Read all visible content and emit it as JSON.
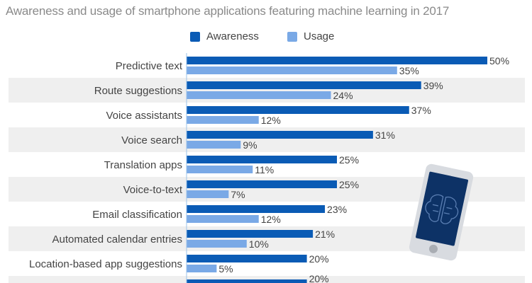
{
  "chart_data": {
    "type": "bar",
    "orientation": "horizontal",
    "subtitle": "Awareness and usage of smartphone applications featuring machine learning in 2017",
    "categories": [
      "Predictive text",
      "Route suggestions",
      "Voice assistants",
      "Voice search",
      "Translation apps",
      "Voice-to-text",
      "Email classification",
      "Automated calendar entries",
      "Location-based app suggestions",
      ""
    ],
    "series": [
      {
        "name": "Awareness",
        "color": "#0a5bb5",
        "values": [
          50,
          39,
          37,
          31,
          25,
          25,
          23,
          21,
          20,
          20
        ]
      },
      {
        "name": "Usage",
        "color": "#7aa9e6",
        "values": [
          35,
          24,
          12,
          9,
          11,
          7,
          12,
          10,
          5,
          null
        ]
      }
    ],
    "unit": "%",
    "xlim": [
      0,
      50
    ],
    "legend": "top-center",
    "grid": false
  },
  "colors": {
    "stripe": "#efefef",
    "axis": "#9ec3ea",
    "text": "#444444",
    "phone_screen": "#0d3266",
    "phone_body": "#d8dbe0"
  }
}
